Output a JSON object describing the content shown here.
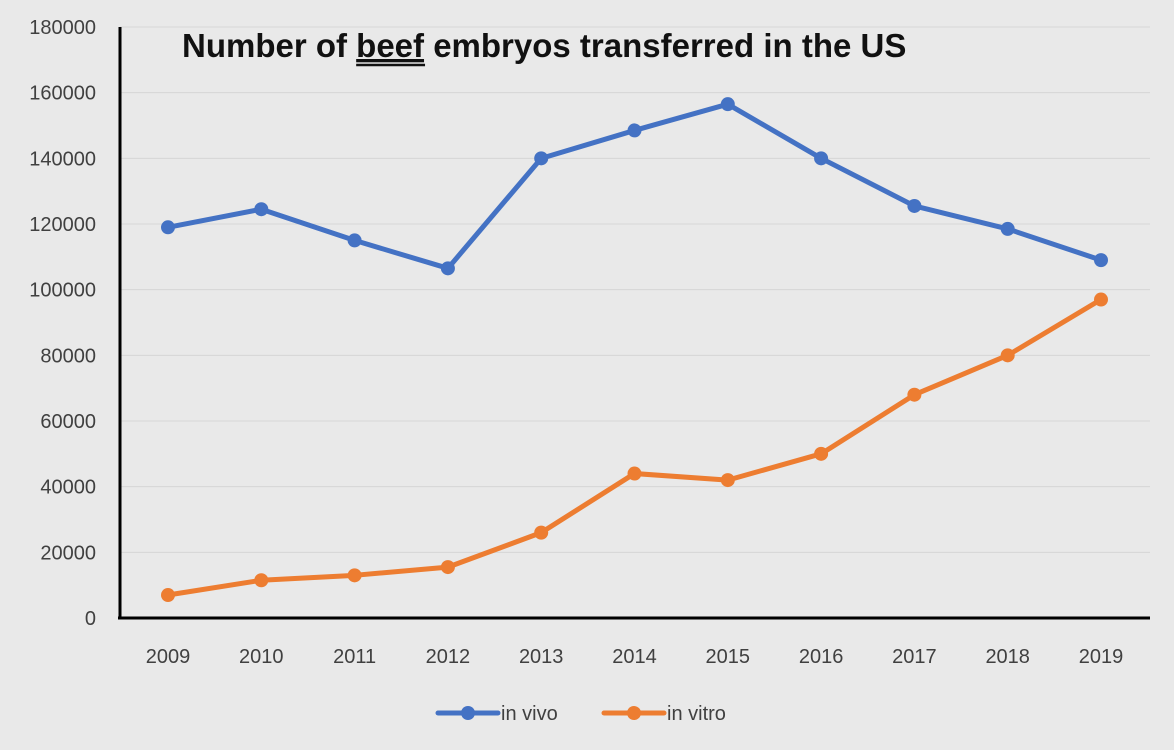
{
  "chart_data": {
    "type": "line",
    "title": {
      "before": "Number of ",
      "underlined": "beef",
      "after": " embryos transferred in the US"
    },
    "xlabel": "",
    "ylabel": "",
    "categories": [
      "2009",
      "2010",
      "2011",
      "2012",
      "2013",
      "2014",
      "2015",
      "2016",
      "2017",
      "2018",
      "2019"
    ],
    "ylim": [
      0,
      180000
    ],
    "yticks": [
      0,
      20000,
      40000,
      60000,
      80000,
      100000,
      120000,
      140000,
      160000,
      180000
    ],
    "grid": true,
    "legend_position": "bottom",
    "series": [
      {
        "name": "in vivo",
        "color": "#4472c4",
        "values": [
          119000,
          124500,
          115000,
          106500,
          140000,
          148500,
          156500,
          140000,
          125500,
          118500,
          109000
        ]
      },
      {
        "name": "in vitro",
        "color": "#ed7d31",
        "values": [
          7000,
          11500,
          13000,
          15500,
          26000,
          44000,
          42000,
          50000,
          68000,
          80000,
          97000
        ]
      }
    ]
  }
}
